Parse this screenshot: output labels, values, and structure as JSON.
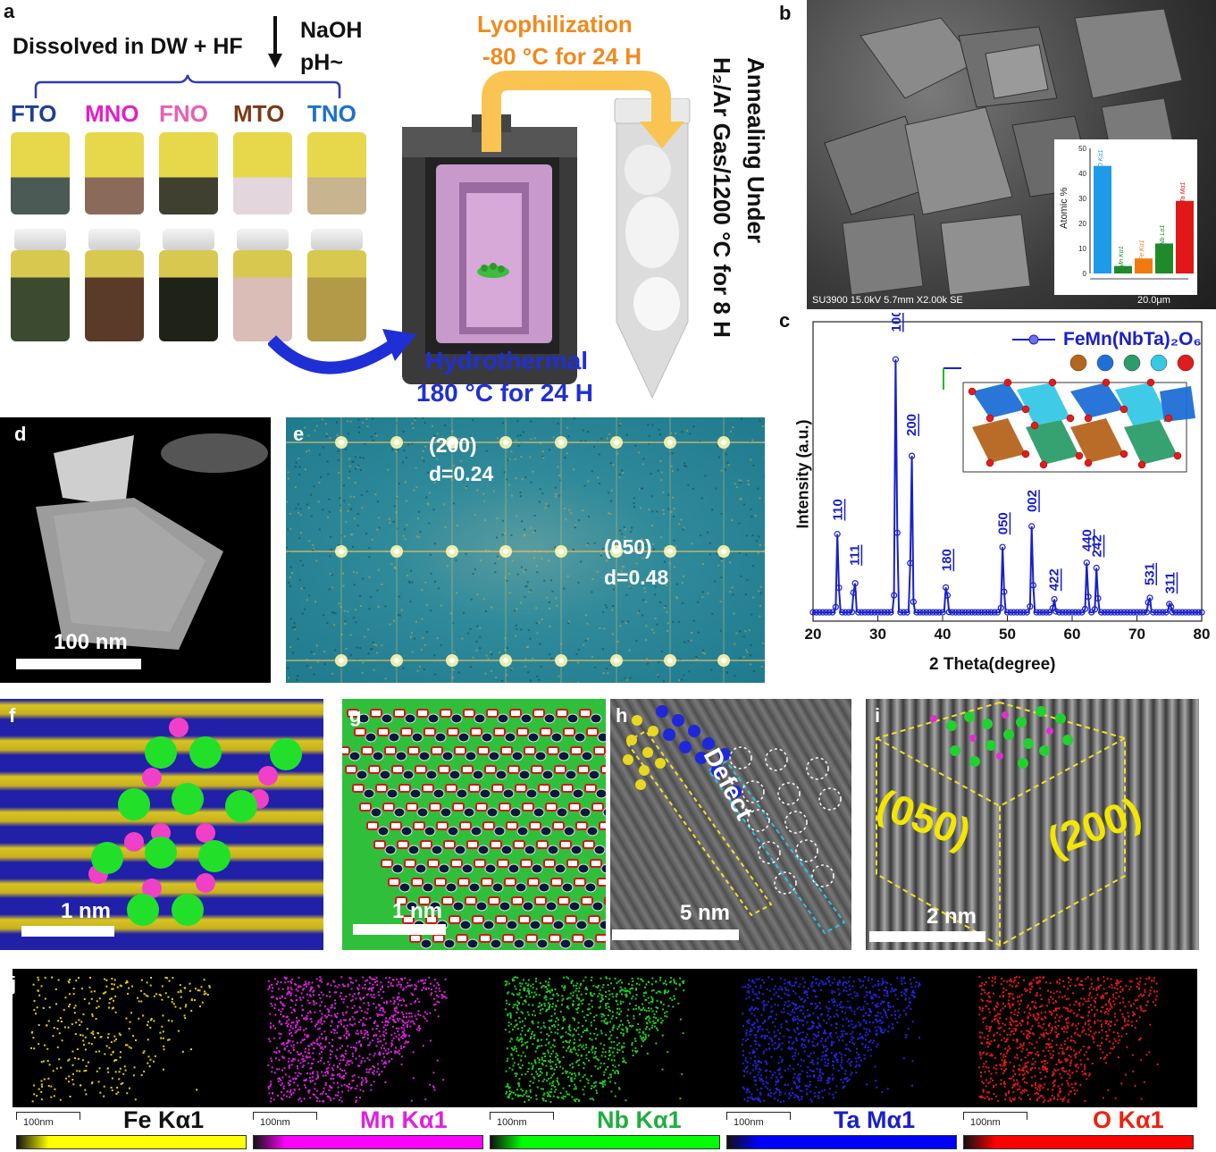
{
  "panels": {
    "a": "a",
    "b": "b",
    "c": "c",
    "d": "d",
    "e": "e",
    "f": "f",
    "g": "g",
    "h": "h",
    "i": "i",
    "j": "j"
  },
  "panel_a": {
    "dissolved": "Dissolved in DW + HF",
    "naoh": "NaOH",
    "ph": "pH~",
    "samples": [
      {
        "label": "FTO",
        "color": "#1d3f8f"
      },
      {
        "label": "MNO",
        "color": "#e020c8"
      },
      {
        "label": "FNO",
        "color": "#e860b0"
      },
      {
        "label": "MTO",
        "color": "#7a3a16"
      },
      {
        "label": "TNO",
        "color": "#1d6fd0"
      }
    ],
    "lyophilization": "Lyophilization",
    "lyo_cond": "-80 °C for 24 H",
    "hydrothermal": "Hydrothermal",
    "hydro_cond": "180 °C for 24 H",
    "annealing_1": "Annealing Under",
    "annealing_2": "H₂/Ar Gas/1200 °C for 8 H"
  },
  "panel_b": {
    "sem_info": "SU3900 15.0kV 5.7mm X2.00k SE",
    "scale": "20.0μm",
    "inset_ylabel": "Atomic %",
    "inset_yticks": [
      "0",
      "10",
      "20",
      "30",
      "40",
      "50"
    ],
    "bars": [
      {
        "label": "O Kα1",
        "value": 43,
        "color": "#1e9be8"
      },
      {
        "label": "Mn Kα1",
        "value": 3,
        "color": "#1f8a2a"
      },
      {
        "label": "Fe Kα1",
        "value": 6,
        "color": "#f07a10"
      },
      {
        "label": "Nb Lα1",
        "value": 12,
        "color": "#1f8a2a"
      },
      {
        "label": "Ta Mα1",
        "value": 29,
        "color": "#e21818"
      }
    ]
  },
  "panel_c": {
    "legend": "FeMn(NbTa)₂O₆",
    "atom_colors": [
      "#b5651d",
      "#1e6fd6",
      "#2c9c6a",
      "#35c9e6",
      "#e01c1c"
    ]
  },
  "chart_data": {
    "type": "line",
    "title": "",
    "xlabel": "2 Theta(degree)",
    "ylabel": "Intensity (a.u.)",
    "xlim": [
      20,
      80
    ],
    "ylim": [
      0,
      100
    ],
    "xticks": [
      "20",
      "30",
      "40",
      "50",
      "60",
      "70",
      "80"
    ],
    "series": [
      {
        "name": "FeMn(NbTa)2O6",
        "color": "#1a20c8"
      }
    ],
    "peaks": [
      {
        "x": 23.8,
        "y": 30,
        "label": "110"
      },
      {
        "x": 26.4,
        "y": 14,
        "label": "111"
      },
      {
        "x": 32.8,
        "y": 97,
        "label": "100"
      },
      {
        "x": 35.2,
        "y": 60,
        "label": "200"
      },
      {
        "x": 40.6,
        "y": 12,
        "label": "180"
      },
      {
        "x": 49.3,
        "y": 25,
        "label": "050"
      },
      {
        "x": 53.8,
        "y": 33,
        "label": "002"
      },
      {
        "x": 57.2,
        "y": 5,
        "label": "422"
      },
      {
        "x": 62.3,
        "y": 19,
        "label": "440"
      },
      {
        "x": 63.8,
        "y": 17,
        "label": "242"
      },
      {
        "x": 71.9,
        "y": 7,
        "label": "531"
      },
      {
        "x": 75.1,
        "y": 4,
        "label": "311"
      }
    ]
  },
  "panel_d": {
    "scale": "100 nm"
  },
  "panel_e": {
    "spot1": "(200)",
    "d1": "d=0.24",
    "spot2": "(050)",
    "d2": "d=0.48"
  },
  "panel_f": {
    "scale": "1 nm"
  },
  "panel_g": {
    "scale": "1 nm"
  },
  "panel_h": {
    "defect": "Defect",
    "scale": "5 nm"
  },
  "panel_i": {
    "plane1": "(050)",
    "plane2": "(200)",
    "scale": "2 nm"
  },
  "panel_j": {
    "maps": [
      {
        "element": "Fe Kα1",
        "color": "#e5d000",
        "label_color": "#111111",
        "bar": "#ffff00"
      },
      {
        "element": "Mn Kα1",
        "color": "#e020e0",
        "label_color": "#e020e0",
        "bar": "#ff00ff"
      },
      {
        "element": "Nb Kα1",
        "color": "#22cc22",
        "label_color": "#1fae3e",
        "bar": "#00ff00"
      },
      {
        "element": "Ta Mα1",
        "color": "#2424e0",
        "label_color": "#1a20c8",
        "bar": "#0000ff"
      },
      {
        "element": "O Kα1",
        "color": "#e81818",
        "label_color": "#ee2010",
        "bar": "#ff0000"
      }
    ],
    "scale": "100nm"
  }
}
